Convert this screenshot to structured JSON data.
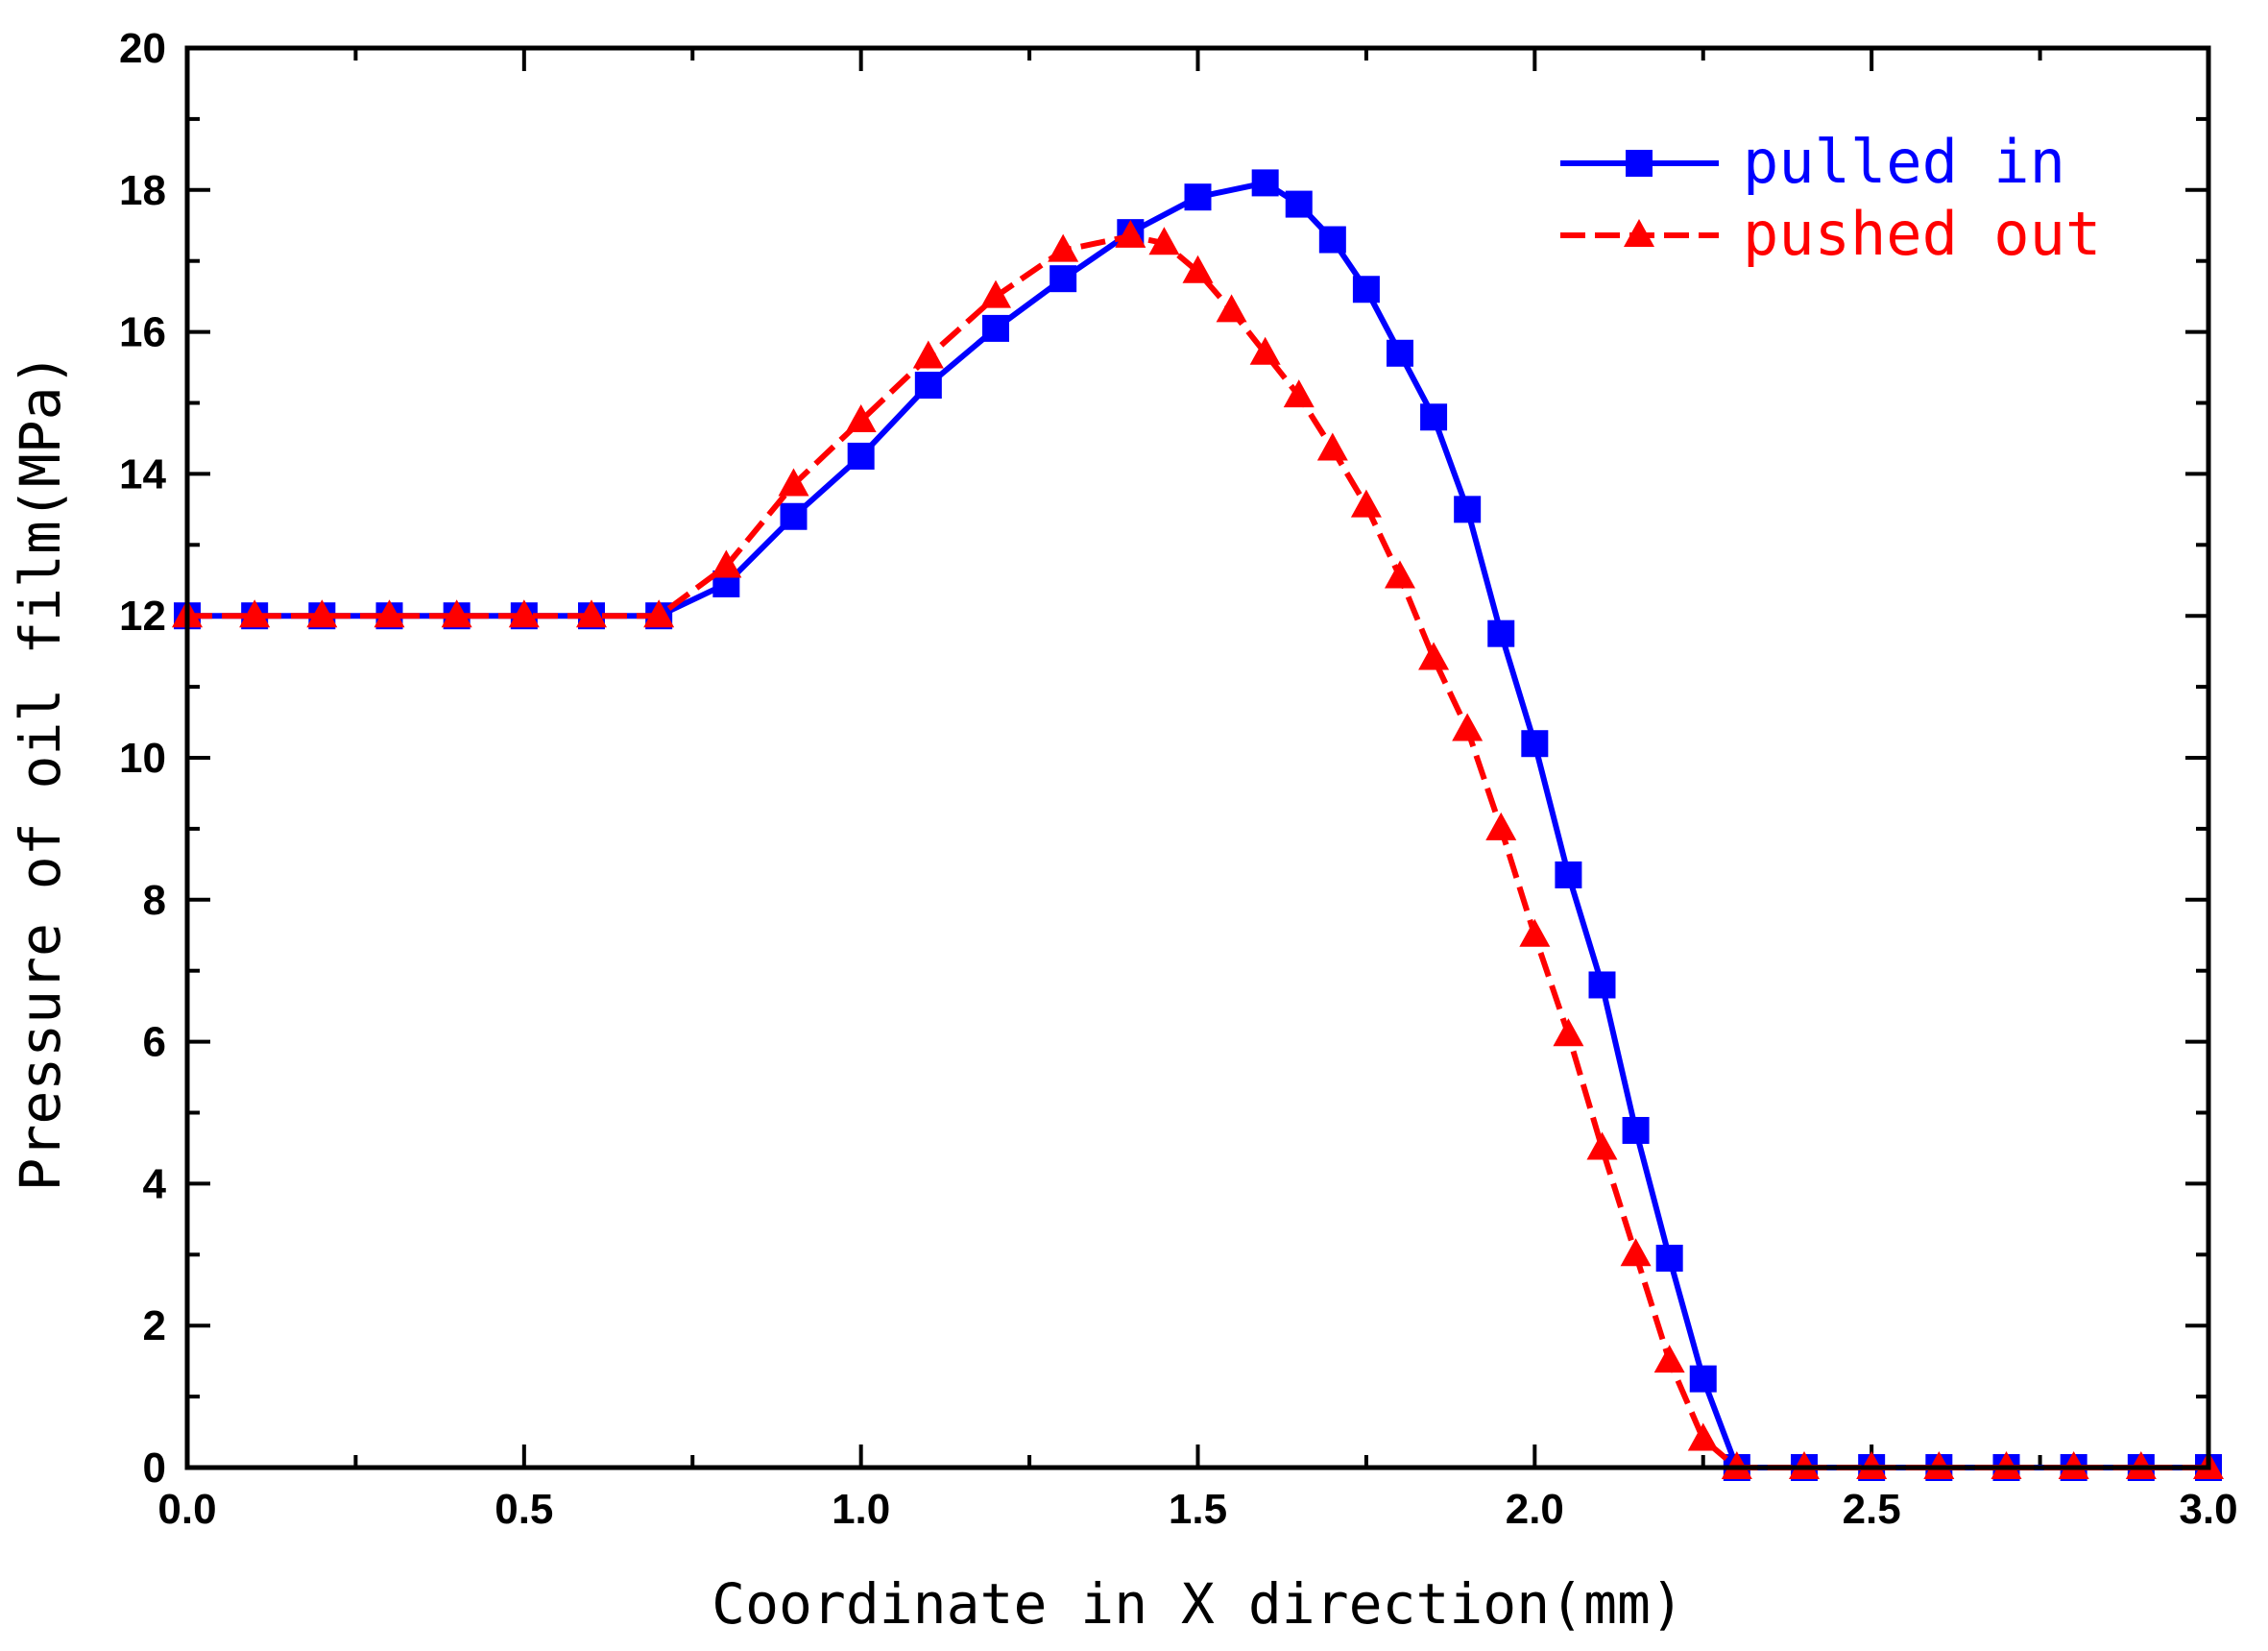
{
  "chart_data": {
    "type": "line",
    "title": "",
    "xlabel": "Coordinate in X direction(mm)",
    "ylabel": "Pressure of oil film(MPa)",
    "xlim": [
      0,
      3.0
    ],
    "ylim": [
      0,
      20
    ],
    "xticks": [
      "0.0",
      "0.5",
      "1.0",
      "1.5",
      "2.0",
      "2.5",
      "3.0"
    ],
    "yticks": [
      "0",
      "2",
      "4",
      "6",
      "8",
      "10",
      "12",
      "14",
      "16",
      "18",
      "20"
    ],
    "legend_position": "top-right",
    "series": [
      {
        "name": "pulled in",
        "color": "#0000ff",
        "marker": "square",
        "line_style": "solid",
        "x": [
          0.0,
          0.1,
          0.2,
          0.3,
          0.4,
          0.5,
          0.6,
          0.7,
          0.8,
          0.9,
          1.0,
          1.1,
          1.2,
          1.3,
          1.4,
          1.5,
          1.6,
          1.65,
          1.7,
          1.75,
          1.8,
          1.85,
          1.9,
          1.95,
          2.0,
          2.05,
          2.1,
          2.15,
          2.2,
          2.25,
          2.3,
          2.4,
          2.5,
          2.6,
          2.7,
          2.8,
          2.9,
          3.0
        ],
        "y": [
          12.0,
          12.0,
          12.0,
          12.0,
          12.0,
          12.0,
          12.0,
          12.0,
          12.45,
          13.4,
          14.25,
          15.25,
          16.05,
          16.75,
          17.4,
          17.9,
          18.1,
          17.8,
          17.3,
          16.6,
          15.7,
          14.8,
          13.5,
          11.75,
          10.2,
          8.35,
          6.8,
          4.75,
          2.95,
          1.25,
          0.0,
          0.0,
          0.0,
          0.0,
          0.0,
          0.0,
          0.0,
          0.0
        ]
      },
      {
        "name": "pushed out",
        "color": "#ff0000",
        "marker": "triangle",
        "line_style": "dashed",
        "x": [
          0.0,
          0.1,
          0.2,
          0.3,
          0.4,
          0.5,
          0.6,
          0.7,
          0.8,
          0.9,
          1.0,
          1.1,
          1.2,
          1.3,
          1.4,
          1.45,
          1.5,
          1.55,
          1.6,
          1.65,
          1.7,
          1.75,
          1.8,
          1.85,
          1.9,
          1.95,
          2.0,
          2.05,
          2.1,
          2.15,
          2.2,
          2.25,
          2.3,
          2.4,
          2.5,
          2.6,
          2.7,
          2.8,
          2.9,
          3.0
        ],
        "y": [
          12.0,
          12.0,
          12.0,
          12.0,
          12.0,
          12.0,
          12.0,
          12.0,
          12.7,
          13.85,
          14.75,
          15.65,
          16.5,
          17.15,
          17.35,
          17.25,
          16.85,
          16.3,
          15.7,
          15.1,
          14.35,
          13.55,
          12.55,
          11.4,
          10.4,
          9.0,
          7.5,
          6.1,
          4.5,
          3.0,
          1.5,
          0.4,
          0.0,
          0.0,
          0.0,
          0.0,
          0.0,
          0.0,
          0.0,
          0.0
        ]
      }
    ]
  }
}
